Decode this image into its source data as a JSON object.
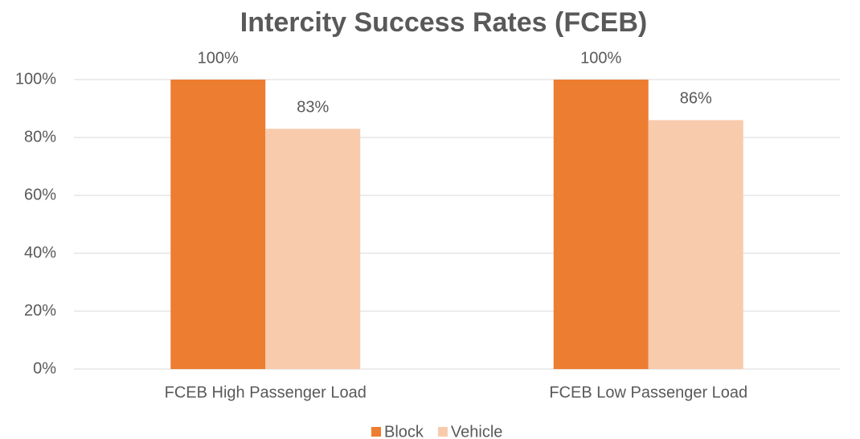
{
  "chart_data": {
    "type": "bar",
    "title": "Intercity Success Rates (FCEB)",
    "categories": [
      "FCEB High Passenger Load",
      "FCEB Low Passenger Load"
    ],
    "series": [
      {
        "name": "Block",
        "color": "#ed7d31",
        "values": [
          100,
          100
        ],
        "value_labels": [
          "100%",
          "100%"
        ]
      },
      {
        "name": "Vehicle",
        "color": "#f8cbad",
        "values": [
          83,
          86
        ],
        "value_labels": [
          "83%",
          "86%"
        ]
      }
    ],
    "ylim": [
      0,
      100
    ],
    "yticks": [
      {
        "value": 0,
        "label": "0%"
      },
      {
        "value": 20,
        "label": "20%"
      },
      {
        "value": 40,
        "label": "40%"
      },
      {
        "value": 60,
        "label": "60%"
      },
      {
        "value": 80,
        "label": "80%"
      },
      {
        "value": 100,
        "label": "100%"
      }
    ],
    "grid": true,
    "legend": "bottom"
  }
}
